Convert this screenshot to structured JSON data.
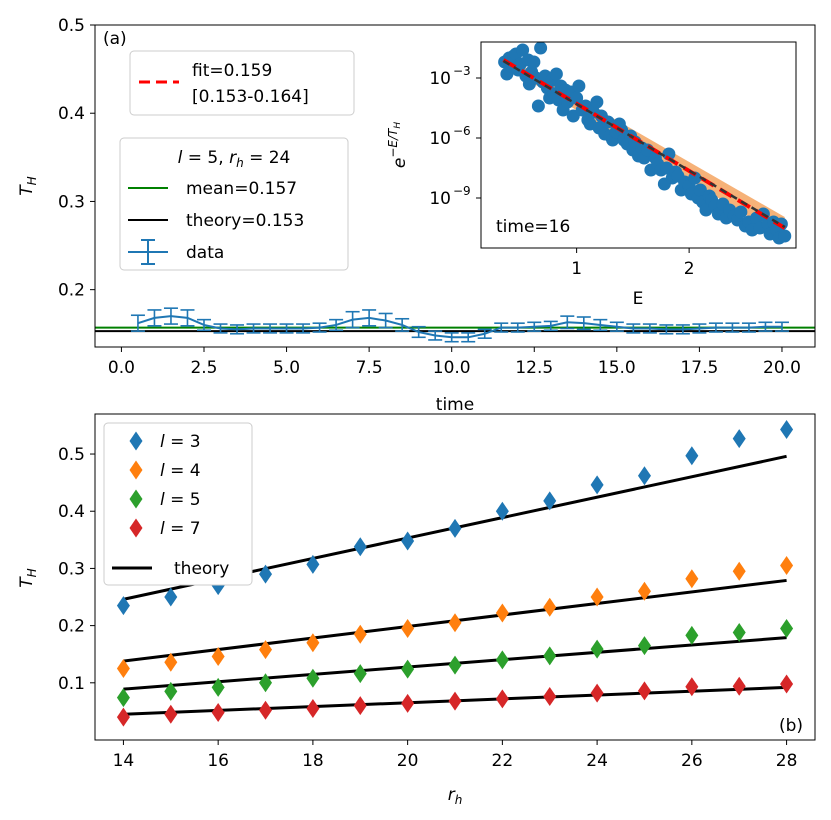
{
  "chart_data": [
    {
      "panel": "(a)",
      "type": "line",
      "xlabel": "time",
      "ylabel": "T_H",
      "xlim": [
        -0.8,
        21.0
      ],
      "ylim": [
        0.135,
        0.5
      ],
      "xticks": [
        0.0,
        2.5,
        5.0,
        7.5,
        10.0,
        12.5,
        15.0,
        17.5,
        20.0
      ],
      "xtick_labels": [
        "0.0",
        "2.5",
        "5.0",
        "7.5",
        "10.0",
        "12.5",
        "15.0",
        "17.5",
        "20.0"
      ],
      "yticks": [
        0.2,
        0.3,
        0.4,
        0.5
      ],
      "ytick_labels": [
        "0.2",
        "0.3",
        "0.4",
        "0.5"
      ],
      "mean_line": {
        "label": "mean=0.157",
        "value": 0.157,
        "color": "#008000"
      },
      "theory_line": {
        "label": "theory=0.153",
        "value": 0.153,
        "color": "#000000"
      },
      "data": {
        "label": "data",
        "color": "#1f77b4",
        "x": [
          0.5,
          1.0,
          1.5,
          2.0,
          2.5,
          3.0,
          3.5,
          4.0,
          4.5,
          5.0,
          5.5,
          6.0,
          6.5,
          7.0,
          7.5,
          8.0,
          8.5,
          9.0,
          9.5,
          10.0,
          10.5,
          11.0,
          11.5,
          12.0,
          12.5,
          13.0,
          13.5,
          14.0,
          14.5,
          15.0,
          15.5,
          16.0,
          16.5,
          17.0,
          17.5,
          18.0,
          18.5,
          19.0,
          19.5,
          20.0
        ],
        "y": [
          0.162,
          0.168,
          0.17,
          0.168,
          0.16,
          0.156,
          0.155,
          0.156,
          0.156,
          0.156,
          0.156,
          0.157,
          0.16,
          0.166,
          0.168,
          0.165,
          0.16,
          0.152,
          0.148,
          0.146,
          0.146,
          0.15,
          0.157,
          0.157,
          0.158,
          0.159,
          0.163,
          0.162,
          0.16,
          0.158,
          0.156,
          0.156,
          0.155,
          0.155,
          0.156,
          0.157,
          0.157,
          0.157,
          0.158,
          0.158
        ],
        "err": [
          0.009,
          0.009,
          0.009,
          0.009,
          0.006,
          0.005,
          0.005,
          0.005,
          0.005,
          0.005,
          0.005,
          0.005,
          0.006,
          0.009,
          0.009,
          0.008,
          0.007,
          0.006,
          0.005,
          0.005,
          0.005,
          0.005,
          0.005,
          0.005,
          0.005,
          0.005,
          0.007,
          0.007,
          0.006,
          0.005,
          0.005,
          0.005,
          0.005,
          0.005,
          0.005,
          0.005,
          0.005,
          0.005,
          0.005,
          0.005
        ]
      },
      "legend_fit": {
        "label_line1": "fit=0.159",
        "label_line2": "[0.153-0.164]",
        "color": "#ff0000"
      },
      "legend_title": "l = 5, r_h = 24",
      "panel_label": "(a)"
    },
    {
      "panel": "(a) inset",
      "type": "scatter",
      "xlabel": "E",
      "ylabel": "e^{-E/T_H}",
      "yscale": "log",
      "xlim": [
        0.15,
        2.95
      ],
      "ylim_log10": [
        -11.5,
        -1.2
      ],
      "xticks": [
        1,
        2
      ],
      "xtick_labels": [
        "1",
        "2"
      ],
      "yticks_log10": [
        -3,
        -6,
        -9
      ],
      "ytick_mantissa": "10",
      "ytick_exponents": [
        "−3",
        "−6",
        "−9"
      ],
      "annotation": "time=16",
      "fit_line": {
        "x": [
          0.35,
          2.85
        ],
        "log10_y": [
          -2.1,
          -10.5
        ],
        "color": "#ff0000"
      },
      "theory_line": {
        "x": [
          0.35,
          2.85
        ],
        "log10_y": [
          -2.15,
          -10.45
        ],
        "color": "#333333"
      },
      "band_color": "#f4a460",
      "points": {
        "color": "#1f77b4",
        "E": [
          0.36,
          0.38,
          0.4,
          0.42,
          0.44,
          0.46,
          0.48,
          0.5,
          0.52,
          0.55,
          0.57,
          0.58,
          0.6,
          0.62,
          0.64,
          0.66,
          0.68,
          0.7,
          0.72,
          0.74,
          0.76,
          0.78,
          0.8,
          0.82,
          0.84,
          0.86,
          0.88,
          0.9,
          0.92,
          0.95,
          0.97,
          1.0,
          1.02,
          1.05,
          1.08,
          1.1,
          1.12,
          1.15,
          1.18,
          1.2,
          1.22,
          1.25,
          1.28,
          1.3,
          1.32,
          1.35,
          1.38,
          1.4,
          1.42,
          1.45,
          1.48,
          1.5,
          1.52,
          1.55,
          1.58,
          1.6,
          1.63,
          1.66,
          1.7,
          1.72,
          1.75,
          1.78,
          1.8,
          1.82,
          1.85,
          1.88,
          1.9,
          1.93,
          1.96,
          2.0,
          2.02,
          2.05,
          2.08,
          2.1,
          2.12,
          2.15,
          2.18,
          2.2,
          2.23,
          2.26,
          2.3,
          2.33,
          2.36,
          2.4,
          2.43,
          2.46,
          2.5,
          2.53,
          2.56,
          2.6,
          2.63,
          2.66,
          2.7,
          2.72,
          2.75,
          2.78,
          2.8,
          2.82,
          2.85
        ],
        "log10_y": [
          -2.2,
          -2.8,
          -2.0,
          -2.4,
          -1.9,
          -1.8,
          -2.6,
          -2.3,
          -1.6,
          -2.9,
          -2.1,
          -3.3,
          -2.7,
          -2.2,
          -3.0,
          -4.4,
          -1.5,
          -3.2,
          -2.9,
          -3.5,
          -4.0,
          -3.1,
          -3.8,
          -2.8,
          -4.1,
          -3.4,
          -4.6,
          -3.6,
          -4.2,
          -3.7,
          -4.9,
          -4.0,
          -3.4,
          -4.6,
          -4.4,
          -5.1,
          -5.3,
          -4.7,
          -4.2,
          -5.5,
          -4.9,
          -5.8,
          -5.2,
          -5.9,
          -6.1,
          -5.7,
          -5.3,
          -5.6,
          -6.1,
          -6.3,
          -5.9,
          -6.6,
          -6.2,
          -6.9,
          -6.5,
          -7.0,
          -6.6,
          -7.6,
          -7.0,
          -7.3,
          -7.6,
          -8.3,
          -7.5,
          -6.8,
          -8.0,
          -7.7,
          -7.9,
          -8.6,
          -8.2,
          -8.4,
          -8.8,
          -8.0,
          -9.0,
          -8.6,
          -9.2,
          -9.6,
          -8.9,
          -9.1,
          -9.4,
          -9.8,
          -9.3,
          -10.0,
          -9.6,
          -9.9,
          -10.1,
          -9.7,
          -10.4,
          -10.2,
          -10.6,
          -10.0,
          -10.5,
          -9.8,
          -10.3,
          -10.8,
          -10.2,
          -10.6,
          -11.0,
          -10.3,
          -10.9
        ]
      }
    },
    {
      "panel": "(b)",
      "type": "scatter",
      "xlabel": "r_h",
      "ylabel": "T_H",
      "xlim": [
        13.4,
        28.6
      ],
      "ylim": [
        0.0,
        0.57
      ],
      "xticks": [
        14,
        16,
        18,
        20,
        22,
        24,
        26,
        28
      ],
      "xtick_labels": [
        "14",
        "16",
        "18",
        "20",
        "22",
        "24",
        "26",
        "28"
      ],
      "yticks": [
        0.1,
        0.2,
        0.3,
        0.4,
        0.5
      ],
      "ytick_labels": [
        "0.1",
        "0.2",
        "0.3",
        "0.4",
        "0.5"
      ],
      "x": [
        14,
        15,
        16,
        17,
        18,
        19,
        20,
        21,
        22,
        23,
        24,
        25,
        26,
        27,
        28
      ],
      "series": [
        {
          "name": "l = 3",
          "color": "#1f77b4",
          "values": [
            0.235,
            0.25,
            0.27,
            0.29,
            0.307,
            0.338,
            0.348,
            0.37,
            0.4,
            0.418,
            0.446,
            0.462,
            0.497,
            0.527,
            0.543
          ],
          "theory": [
            0.246,
            0.496
          ]
        },
        {
          "name": "l = 4",
          "color": "#ff7f0e",
          "values": [
            0.125,
            0.136,
            0.146,
            0.158,
            0.17,
            0.185,
            0.195,
            0.205,
            0.222,
            0.232,
            0.25,
            0.26,
            0.282,
            0.295,
            0.305
          ],
          "theory": [
            0.138,
            0.279
          ]
        },
        {
          "name": "l = 5",
          "color": "#2ca02c",
          "values": [
            0.074,
            0.085,
            0.092,
            0.1,
            0.108,
            0.116,
            0.124,
            0.131,
            0.14,
            0.147,
            0.159,
            0.165,
            0.183,
            0.188,
            0.195
          ],
          "theory": [
            0.089,
            0.179
          ]
        },
        {
          "name": "l = 7",
          "color": "#d62728",
          "values": [
            0.04,
            0.045,
            0.048,
            0.052,
            0.055,
            0.06,
            0.064,
            0.068,
            0.072,
            0.076,
            0.082,
            0.086,
            0.093,
            0.094,
            0.098
          ],
          "theory": [
            0.045,
            0.092
          ]
        }
      ],
      "theory_label": "theory",
      "panel_label": "(b)"
    }
  ]
}
